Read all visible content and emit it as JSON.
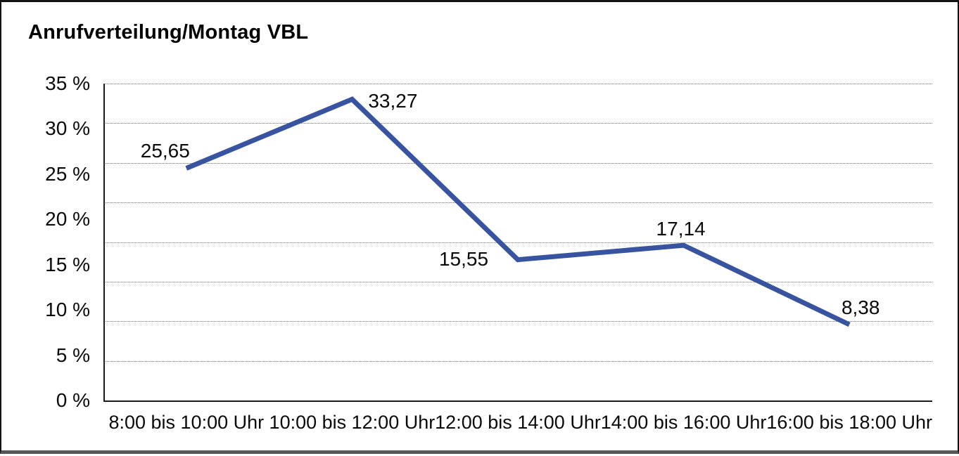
{
  "chart_data": {
    "type": "line",
    "title": "Anrufverteilung/Montag VBL",
    "categories": [
      "8:00 bis 10:00 Uhr",
      "10:00 bis 12:00 Uhr",
      "12:00 bis 14:00 Uhr",
      "14:00 bis 16:00 Uhr",
      "16:00 bis 18:00 Uhr"
    ],
    "values": [
      25.65,
      33.27,
      15.55,
      17.14,
      8.38
    ],
    "value_labels": [
      "25,65",
      "33,27",
      "15,55",
      "17,14",
      "8,38"
    ],
    "y_tick_labels": [
      "35 %",
      "30 %",
      "25 %",
      "20 %",
      "15 %",
      "10 %",
      "5 %",
      "0 %"
    ],
    "ylim": [
      0,
      35
    ],
    "xlabel": "",
    "ylabel": "",
    "legend": "none",
    "grid": "horizontal-dotted",
    "grid_intervals": 8,
    "line_color": "#3854A0",
    "axis_color": "#1c1c1c",
    "text_color": "#0a0a0a"
  }
}
